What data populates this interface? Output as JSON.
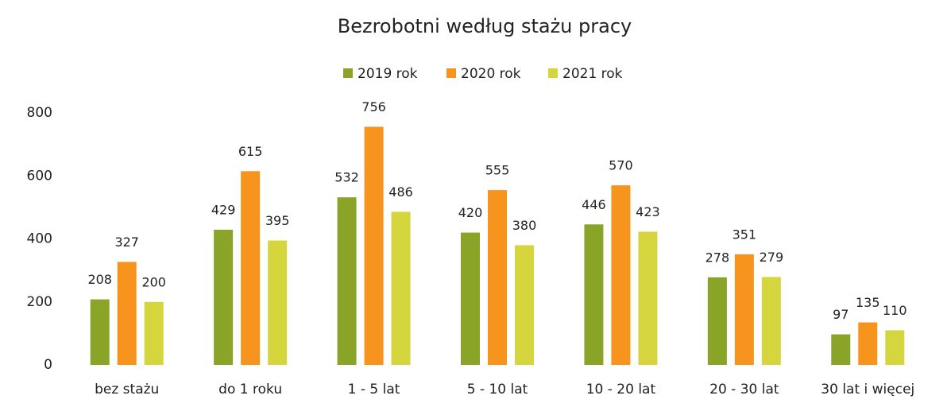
{
  "chart_data": {
    "type": "bar",
    "title": "Bezrobotni według stażu pracy",
    "categories": [
      "bez stażu",
      "do 1 roku",
      "1 - 5 lat",
      "5 - 10 lat",
      "10 - 20 lat",
      "20 - 30 lat",
      "30 lat i więcej"
    ],
    "series": [
      {
        "name": "2019 rok",
        "color": "#8aa428",
        "values": [
          208,
          429,
          532,
          420,
          446,
          278,
          97
        ]
      },
      {
        "name": "2020 rok",
        "color": "#f7941d",
        "values": [
          327,
          615,
          756,
          555,
          570,
          351,
          135
        ]
      },
      {
        "name": "2021 rok",
        "color": "#d5d63e",
        "values": [
          200,
          395,
          486,
          380,
          423,
          279,
          110
        ]
      }
    ],
    "ylim": [
      0,
      800
    ],
    "yticks": [
      0,
      200,
      400,
      600,
      800
    ],
    "grid": false,
    "legend": "top"
  }
}
